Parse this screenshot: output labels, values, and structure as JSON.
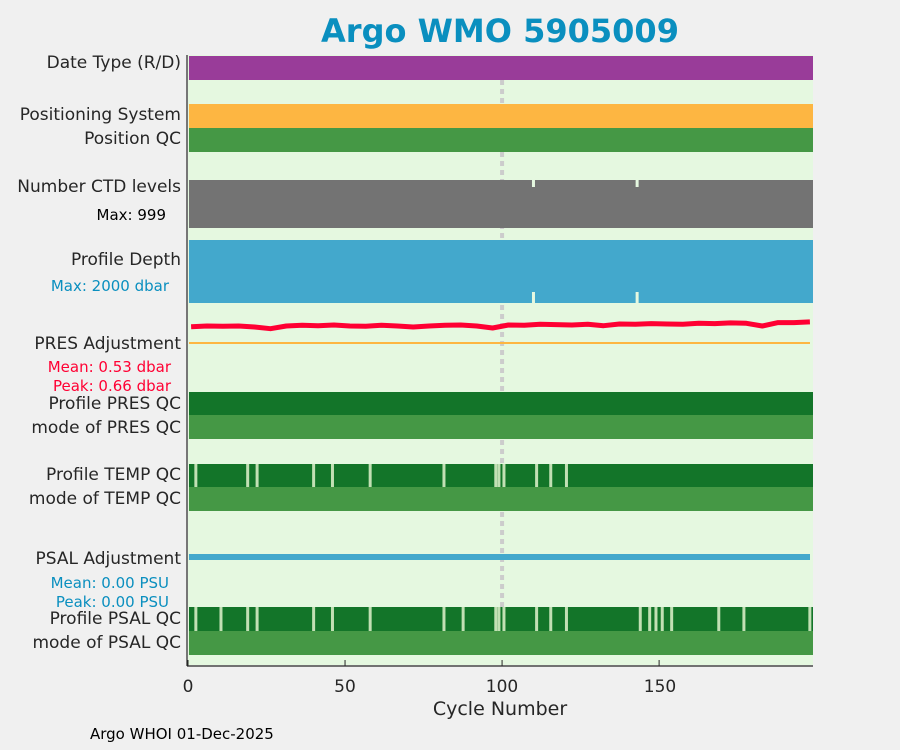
{
  "title": "Argo WMO 5905009",
  "footer": "Argo WHOI 01-Dec-2025",
  "labels": {
    "date_type": "Date Type (R/D)",
    "positioning_system": "Positioning System",
    "position_qc": "Position QC",
    "ctd_levels": "Number CTD levels",
    "ctd_max": "Max: 999",
    "profile_depth": "Profile Depth",
    "depth_max": "Max: 2000 dbar",
    "pres_adj": "PRES Adjustment",
    "pres_mean": "Mean: 0.53 dbar",
    "pres_peak": "Peak: 0.66 dbar",
    "pres_qc": "Profile PRES QC",
    "pres_mode": "mode of PRES QC",
    "temp_qc": "Profile TEMP QC",
    "temp_mode": "mode of TEMP QC",
    "psal_adj": "PSAL Adjustment",
    "psal_mean": "Mean: 0.00 PSU",
    "psal_peak": "Peak: 0.00 PSU",
    "psal_qc": "Profile PSAL QC",
    "psal_mode": "mode of PSAL QC"
  },
  "colors": {
    "bg": "#e5f8e0",
    "purple": "#993c99",
    "orange": "#fdb642",
    "green": "#459845",
    "darkgreen": "#137529",
    "badqc": "#c2e0b4",
    "gray": "#737373",
    "blue": "#43a8cc",
    "red": "#ff0033",
    "title": "#0a8fbf"
  },
  "chart_data": {
    "type": "bar",
    "xlabel": "Cycle Number",
    "xlim": [
      0,
      199
    ],
    "xticks": [
      "0",
      "50",
      "100",
      "150"
    ],
    "xtick_values": [
      0,
      50,
      100,
      150
    ],
    "marker_cycle": 100,
    "ctd_gap_cycles": [
      110,
      143
    ],
    "temp_qc_bad_cycles": [
      2.5,
      19,
      22,
      40,
      46,
      58,
      81.5,
      98,
      99,
      100.6,
      111,
      115.5,
      120.5
    ],
    "psal_qc_bad_cycles": [
      2.5,
      10.5,
      19,
      22,
      40,
      46,
      58,
      81.5,
      87.6,
      98,
      99,
      100.6,
      111,
      115.5,
      120.5,
      144,
      147,
      149,
      151,
      154,
      169,
      177,
      198
    ],
    "pres_adjustment_dbar": [
      0.48,
      0.5,
      0.49,
      0.5,
      0.47,
      0.42,
      0.5,
      0.52,
      0.51,
      0.53,
      0.5,
      0.49,
      0.52,
      0.5,
      0.47,
      0.5,
      0.52,
      0.53,
      0.5,
      0.44,
      0.53,
      0.52,
      0.55,
      0.54,
      0.53,
      0.55,
      0.51,
      0.56,
      0.55,
      0.57,
      0.56,
      0.55,
      0.58,
      0.57,
      0.59,
      0.58,
      0.5,
      0.6,
      0.6,
      0.62
    ],
    "psal_adjustment_psu": 0.0
  }
}
